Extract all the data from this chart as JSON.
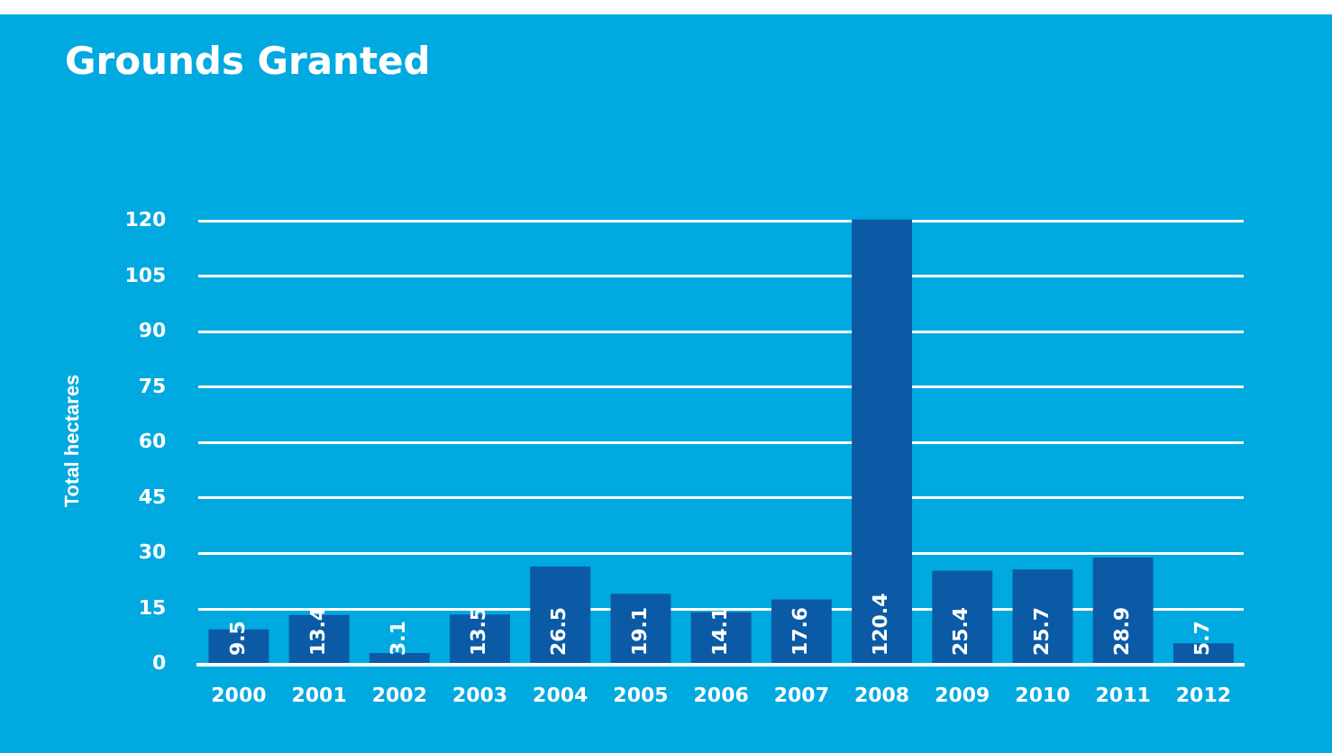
{
  "chart_data": {
    "type": "bar",
    "title": "Grounds Granted",
    "ylabel": "Total hectares",
    "categories": [
      "2000",
      "2001",
      "2002",
      "2003",
      "2004",
      "2005",
      "2006",
      "2007",
      "2008",
      "2009",
      "2010",
      "2011",
      "2012"
    ],
    "values": [
      9.5,
      13.4,
      3.1,
      13.5,
      26.5,
      19.1,
      14.1,
      17.6,
      120.4,
      25.4,
      25.7,
      28.9,
      5.7
    ],
    "color": "#0b5aa6",
    "ylim": [
      0,
      121
    ],
    "yticks": [
      0,
      15,
      30,
      45,
      60,
      75,
      90,
      105,
      120
    ],
    "grid": "y",
    "data_labels": true
  }
}
